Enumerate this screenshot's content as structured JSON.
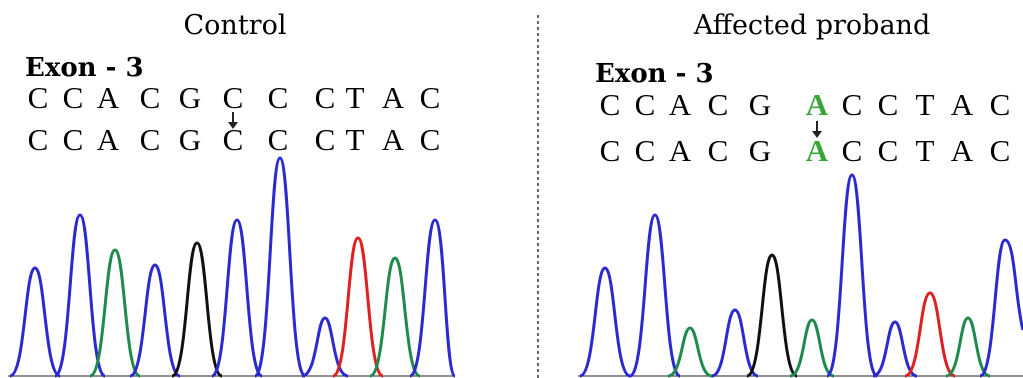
{
  "panels": [
    {
      "title": "Control",
      "exon": "Exon - 3",
      "rows": [
        [
          "C",
          "C",
          "A",
          "C",
          "G",
          "C",
          "C",
          "C",
          "T",
          "A",
          "C"
        ],
        [
          "C",
          "C",
          "A",
          "C",
          "G",
          "C",
          "C",
          "C",
          "T",
          "A",
          "C"
        ]
      ]
    },
    {
      "title": "Affected proband",
      "exon": "Exon - 3",
      "rows": [
        [
          "C",
          "C",
          "A",
          "C",
          "G",
          "A",
          "C",
          "C",
          "T",
          "A",
          "C"
        ],
        [
          "C",
          "C",
          "A",
          "C",
          "G",
          "A",
          "C",
          "C",
          "T",
          "A",
          "C"
        ]
      ]
    }
  ]
}
